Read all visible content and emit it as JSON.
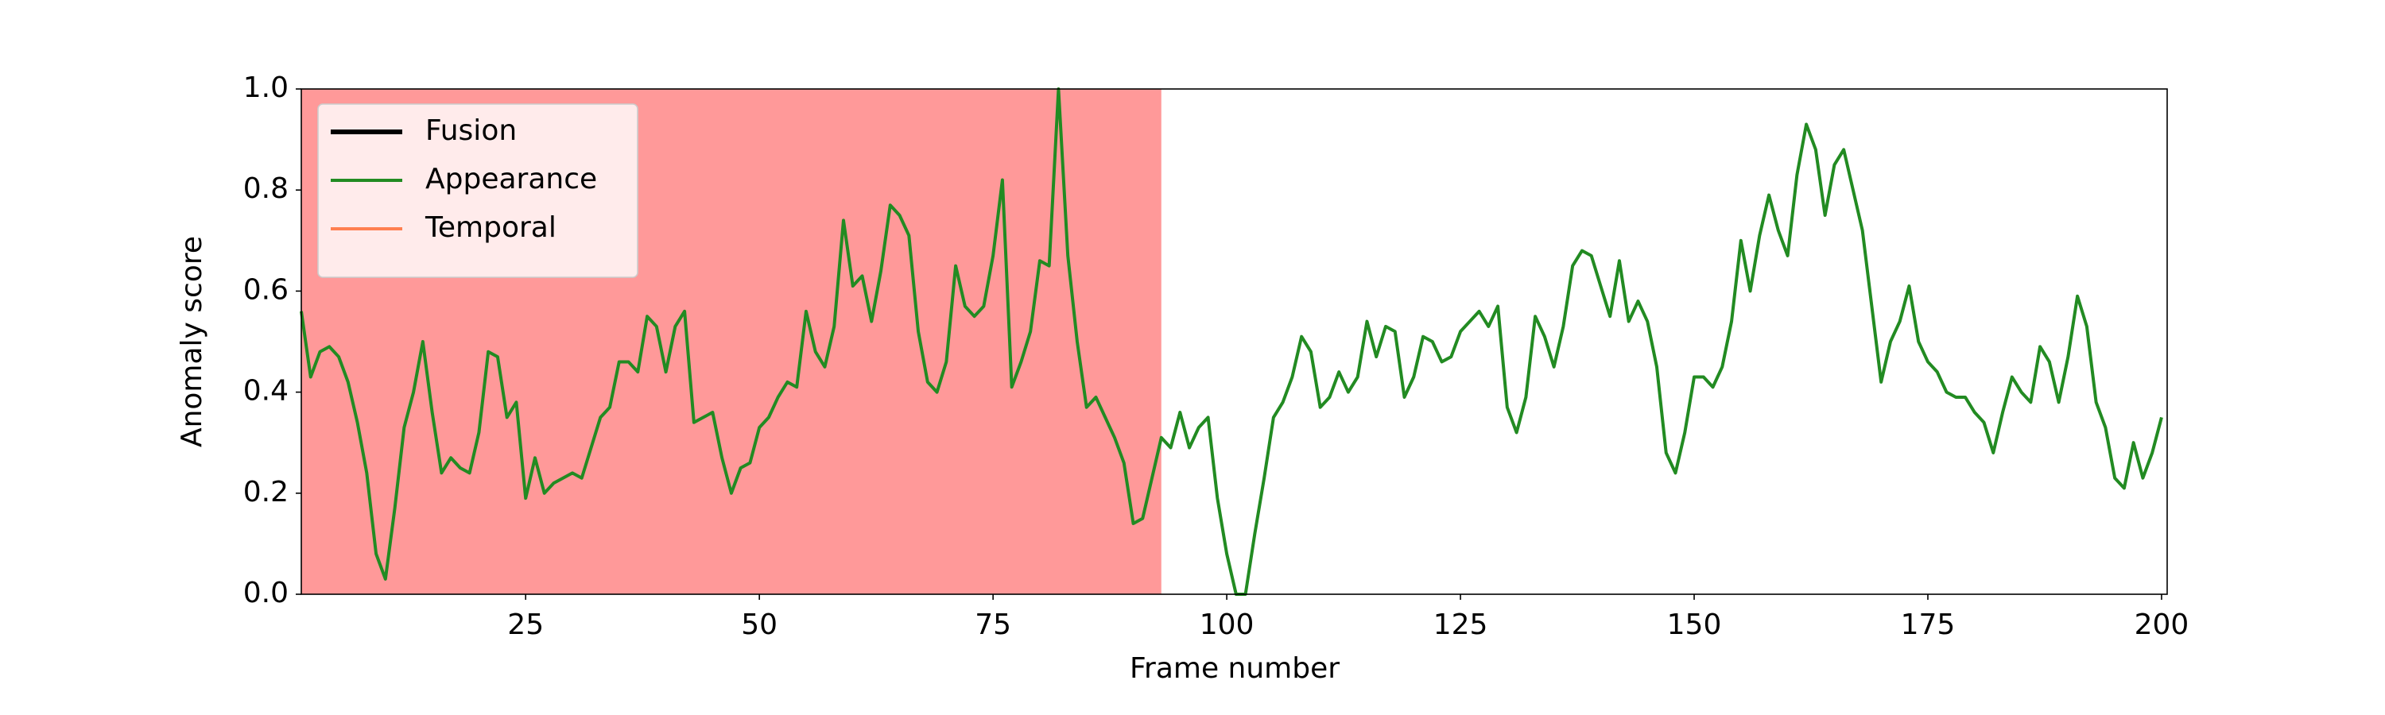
{
  "chart_data": {
    "type": "line",
    "xlabel": "Frame number",
    "ylabel": "Anomaly score",
    "x": [
      1,
      2,
      3,
      4,
      5,
      6,
      7,
      8,
      9,
      10,
      11,
      12,
      13,
      14,
      15,
      16,
      17,
      18,
      19,
      20,
      21,
      22,
      23,
      24,
      25,
      26,
      27,
      28,
      29,
      30,
      31,
      32,
      33,
      34,
      35,
      36,
      37,
      38,
      39,
      40,
      41,
      42,
      43,
      44,
      45,
      46,
      47,
      48,
      49,
      50,
      51,
      52,
      53,
      54,
      55,
      56,
      57,
      58,
      59,
      60,
      61,
      62,
      63,
      64,
      65,
      66,
      67,
      68,
      69,
      70,
      71,
      72,
      73,
      74,
      75,
      76,
      77,
      78,
      79,
      80,
      81,
      82,
      83,
      84,
      85,
      86,
      87,
      88,
      89,
      90,
      91,
      92,
      93,
      94,
      95,
      96,
      97,
      98,
      99,
      100,
      101,
      102,
      103,
      104,
      105,
      106,
      107,
      108,
      109,
      110,
      111,
      112,
      113,
      114,
      115,
      116,
      117,
      118,
      119,
      120,
      121,
      122,
      123,
      124,
      125,
      126,
      127,
      128,
      129,
      130,
      131,
      132,
      133,
      134,
      135,
      136,
      137,
      138,
      139,
      140,
      141,
      142,
      143,
      144,
      145,
      146,
      147,
      148,
      149,
      150,
      151,
      152,
      153,
      154,
      155,
      156,
      157,
      158,
      159,
      160,
      161,
      162,
      163,
      164,
      165,
      166,
      167,
      168,
      169,
      170,
      171,
      172,
      173,
      174,
      175,
      176,
      177,
      178,
      179,
      180,
      181,
      182,
      183,
      184,
      185,
      186,
      187,
      188,
      189,
      190,
      191,
      192,
      193,
      194,
      195,
      196,
      197,
      198,
      199,
      200
    ],
    "series": [
      {
        "name": "Fusion",
        "color": "#000000",
        "linewidth": 3
      },
      {
        "name": "Appearance",
        "color": "#228b22",
        "linewidth": 2,
        "values": [
          0.56,
          0.43,
          0.48,
          0.49,
          0.47,
          0.42,
          0.34,
          0.24,
          0.08,
          0.03,
          0.17,
          0.33,
          0.4,
          0.5,
          0.36,
          0.24,
          0.27,
          0.25,
          0.24,
          0.32,
          0.48,
          0.47,
          0.35,
          0.38,
          0.19,
          0.27,
          0.2,
          0.22,
          0.23,
          0.24,
          0.23,
          0.29,
          0.35,
          0.37,
          0.46,
          0.46,
          0.44,
          0.55,
          0.53,
          0.44,
          0.53,
          0.56,
          0.34,
          0.35,
          0.36,
          0.27,
          0.2,
          0.25,
          0.26,
          0.33,
          0.35,
          0.39,
          0.42,
          0.41,
          0.56,
          0.48,
          0.45,
          0.53,
          0.74,
          0.61,
          0.63,
          0.54,
          0.64,
          0.77,
          0.75,
          0.71,
          0.52,
          0.42,
          0.4,
          0.46,
          0.65,
          0.57,
          0.55,
          0.57,
          0.67,
          0.82,
          0.41,
          0.46,
          0.52,
          0.66,
          0.65,
          1.0,
          0.67,
          0.5,
          0.37,
          0.39,
          0.35,
          0.31,
          0.26,
          0.14,
          0.15,
          0.23,
          0.31,
          0.29,
          0.36,
          0.29,
          0.33,
          0.35,
          0.19,
          0.08,
          0.0,
          0.0,
          0.12,
          0.23,
          0.35,
          0.38,
          0.43,
          0.51,
          0.48,
          0.37,
          0.39,
          0.44,
          0.4,
          0.43,
          0.54,
          0.47,
          0.53,
          0.52,
          0.39,
          0.43,
          0.51,
          0.5,
          0.46,
          0.47,
          0.52,
          0.54,
          0.56,
          0.53,
          0.57,
          0.37,
          0.32,
          0.39,
          0.55,
          0.51,
          0.45,
          0.53,
          0.65,
          0.68,
          0.67,
          0.61,
          0.55,
          0.66,
          0.54,
          0.58,
          0.54,
          0.45,
          0.28,
          0.24,
          0.32,
          0.43,
          0.43,
          0.41,
          0.45,
          0.54,
          0.7,
          0.6,
          0.71,
          0.79,
          0.72,
          0.67,
          0.83,
          0.93,
          0.88,
          0.75,
          0.85,
          0.88,
          0.8,
          0.72,
          0.57,
          0.42,
          0.5,
          0.54,
          0.61,
          0.5,
          0.46,
          0.44,
          0.4,
          0.39,
          0.39,
          0.36,
          0.34,
          0.28,
          0.36,
          0.43,
          0.4,
          0.38,
          0.49,
          0.46,
          0.38,
          0.47,
          0.59,
          0.53,
          0.38,
          0.33,
          0.23,
          0.21,
          0.3,
          0.23,
          0.28,
          0.35
        ]
      },
      {
        "name": "Temporal",
        "color": "#ff7f50",
        "linewidth": 2
      }
    ],
    "shaded_region": [
      1,
      93
    ],
    "shade_color": "#ff9999",
    "xlim": [
      1,
      200.6
    ],
    "xticks": [
      25,
      50,
      75,
      100,
      125,
      150,
      175,
      200
    ],
    "ylim": [
      0,
      1
    ],
    "yticks": [
      {
        "value": 0,
        "label": "0.0"
      },
      0.2,
      0.4,
      0.6,
      0.8,
      {
        "value": 1,
        "label": "1.0"
      }
    ],
    "legend": "upper left"
  }
}
